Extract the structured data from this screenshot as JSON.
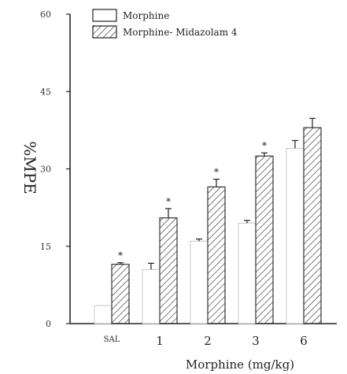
{
  "chart_data": {
    "type": "bar",
    "ylabel": "%MPE",
    "xlabel": "Morphine (mg/kg)",
    "ylim": [
      0,
      60
    ],
    "yticks": [
      "0",
      "15",
      "30",
      "45",
      "60"
    ],
    "ytick_values": [
      0,
      15,
      30,
      45,
      60
    ],
    "categories": [
      "SAL",
      "1",
      "2",
      "3",
      "6"
    ],
    "series": [
      {
        "name": "Morphine",
        "pattern": "plain",
        "values": [
          3.5,
          10.5,
          16,
          19.5,
          34
        ],
        "errors": [
          0,
          1.2,
          0.4,
          0.5,
          1.5
        ],
        "significance": [
          "",
          "",
          "",
          "",
          ""
        ]
      },
      {
        "name": "Morphine- Midazolam 4",
        "pattern": "hatched",
        "values": [
          11.5,
          20.5,
          26.5,
          32.5,
          38
        ],
        "errors": [
          0.3,
          1.8,
          1.5,
          0.6,
          1.8
        ],
        "significance": [
          "*",
          "*",
          "*",
          "*",
          ""
        ]
      }
    ],
    "legend_position": "top-left",
    "grid": false
  },
  "colors": {
    "ink": "#222222",
    "plain_bar": "#ffffff",
    "hatch": "#444444"
  }
}
